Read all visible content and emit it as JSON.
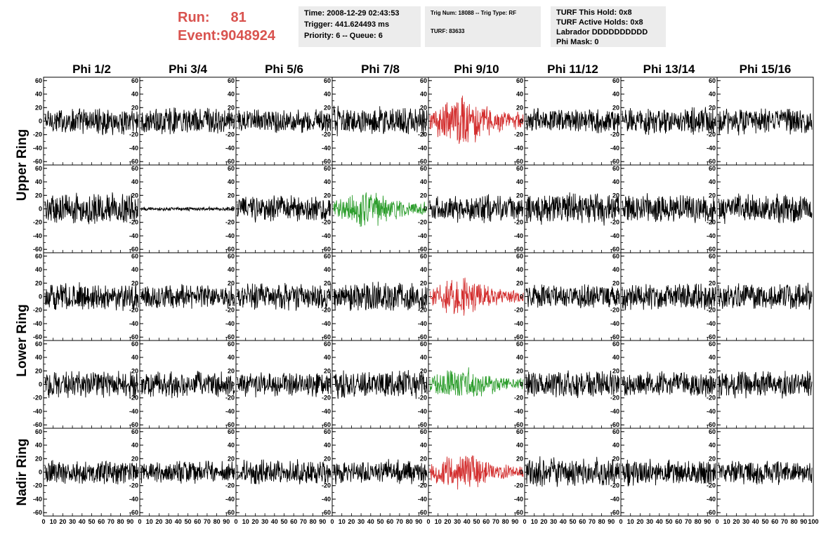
{
  "header": {
    "run_label": "Run:",
    "run_value": "81",
    "event_label": "Event:",
    "event_value": "9048924",
    "time": "Time: 2008-12-29 02:43:53",
    "trigger": "Trigger: 441.624493 ms",
    "priority": "Priority: 6 -- Queue: 6",
    "trig_num": "Trig Num: 18088 -- Trig Type: RF",
    "turf": "TURF: 83633",
    "turf_hold": "TURF This Hold: 0x8",
    "turf_active": "TURF Active Holds: 0x8",
    "labrador": "Labrador DDDDDDDDDD",
    "phi_mask": "Phi Mask: 0"
  },
  "colors": {
    "highlight_red": "#d32f2f",
    "highlight_green": "#2e9e2e",
    "trace": "#000000",
    "accent_text": "#d9534f"
  },
  "chart_data": {
    "type": "line",
    "columns": [
      "Phi 1/2",
      "Phi 3/4",
      "Phi 5/6",
      "Phi 7/8",
      "Phi 9/10",
      "Phi 11/12",
      "Phi 13/14",
      "Phi 15/16"
    ],
    "ring_labels": [
      "Upper Ring",
      "Lower Ring",
      "Nadir Ring"
    ],
    "ylim": [
      -65,
      65
    ],
    "xlim": [
      0,
      100
    ],
    "y_ticks": [
      -60,
      -40,
      -20,
      0,
      20,
      40,
      60
    ],
    "x_ticks": [
      0,
      10,
      20,
      30,
      40,
      50,
      60,
      70,
      80,
      90,
      100
    ],
    "panels": [
      [
        {
          "c": "black",
          "a": 22
        },
        {
          "c": "black",
          "a": 22
        },
        {
          "c": "black",
          "a": 20
        },
        {
          "c": "black",
          "a": 24
        },
        {
          "c": "red",
          "a": 40,
          "b": 1
        },
        {
          "c": "black",
          "a": 20
        },
        {
          "c": "black",
          "a": 22
        },
        {
          "c": "black",
          "a": 22
        }
      ],
      [
        {
          "c": "black",
          "a": 26
        },
        {
          "c": "black",
          "a": 3
        },
        {
          "c": "black",
          "a": 22
        },
        {
          "c": "green",
          "a": 32,
          "b": 1
        },
        {
          "c": "black",
          "a": 22
        },
        {
          "c": "black",
          "a": 26
        },
        {
          "c": "black",
          "a": 24
        },
        {
          "c": "black",
          "a": 24
        }
      ],
      [
        {
          "c": "black",
          "a": 22
        },
        {
          "c": "black",
          "a": 20
        },
        {
          "c": "black",
          "a": 22
        },
        {
          "c": "black",
          "a": 24
        },
        {
          "c": "red",
          "a": 32,
          "b": 1
        },
        {
          "c": "black",
          "a": 20
        },
        {
          "c": "black",
          "a": 22
        },
        {
          "c": "black",
          "a": 22
        }
      ],
      [
        {
          "c": "black",
          "a": 22
        },
        {
          "c": "black",
          "a": 22
        },
        {
          "c": "black",
          "a": 20
        },
        {
          "c": "black",
          "a": 22
        },
        {
          "c": "green",
          "a": 28,
          "b": 1
        },
        {
          "c": "black",
          "a": 22
        },
        {
          "c": "black",
          "a": 20
        },
        {
          "c": "black",
          "a": 22
        }
      ],
      [
        {
          "c": "black",
          "a": 20
        },
        {
          "c": "black",
          "a": 18
        },
        {
          "c": "black",
          "a": 20
        },
        {
          "c": "black",
          "a": 20
        },
        {
          "c": "red",
          "a": 30,
          "b": 1
        },
        {
          "c": "black",
          "a": 24
        },
        {
          "c": "black",
          "a": 22
        },
        {
          "c": "black",
          "a": 20
        }
      ]
    ]
  }
}
